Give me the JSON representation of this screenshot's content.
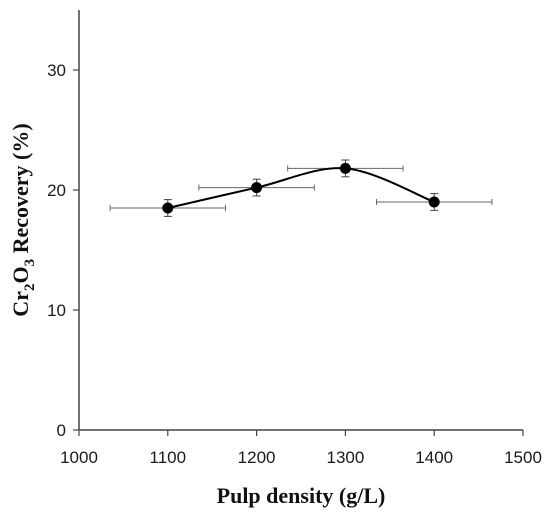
{
  "chart_data": {
    "type": "scatter",
    "title": "",
    "xlabel": "Pulp density (g/L)",
    "ylabel": "Cr2O3 Recovery (%)",
    "xlim": [
      1000,
      1500
    ],
    "ylim": [
      0,
      35
    ],
    "x_ticks": [
      1000,
      1100,
      1200,
      1300,
      1400,
      1500
    ],
    "y_ticks": [
      0,
      10,
      20,
      30
    ],
    "grid": false,
    "legend": "none",
    "series": [
      {
        "marker": "circle",
        "line": "smooth",
        "color": "#000000",
        "x": [
          1100,
          1200,
          1300,
          1400
        ],
        "y": [
          18.5,
          20.2,
          21.8,
          19.0
        ],
        "x_error": [
          65,
          65,
          65,
          65
        ],
        "y_error": [
          0.7,
          0.7,
          0.7,
          0.7
        ]
      }
    ]
  }
}
